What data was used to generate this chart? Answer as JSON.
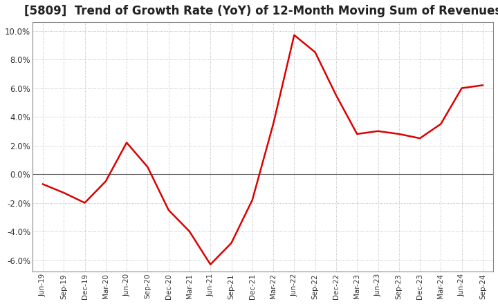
{
  "title": "[5809]  Trend of Growth Rate (YoY) of 12-Month Moving Sum of Revenues",
  "title_fontsize": 12,
  "line_color": "#dd0000",
  "background_color": "#ffffff",
  "plot_bg_color": "#ffffff",
  "grid_color": "#aaaaaa",
  "ylim": [
    -0.068,
    0.106
  ],
  "yticks": [
    -0.06,
    -0.04,
    -0.02,
    0.0,
    0.02,
    0.04,
    0.06,
    0.08,
    0.1
  ],
  "x_labels": [
    "Jun-19",
    "Sep-19",
    "Dec-19",
    "Mar-20",
    "Jun-20",
    "Sep-20",
    "Dec-20",
    "Mar-21",
    "Jun-21",
    "Sep-21",
    "Dec-21",
    "Mar-22",
    "Jun-22",
    "Sep-22",
    "Dec-22",
    "Mar-23",
    "Jun-23",
    "Sep-23",
    "Dec-23",
    "Mar-24",
    "Jun-24",
    "Sep-24"
  ],
  "values": [
    -0.007,
    -0.013,
    -0.02,
    -0.005,
    0.022,
    0.005,
    -0.025,
    -0.04,
    -0.063,
    -0.048,
    -0.018,
    0.035,
    0.097,
    0.085,
    0.055,
    0.028,
    0.03,
    0.028,
    0.025,
    0.035,
    0.06,
    0.062
  ]
}
